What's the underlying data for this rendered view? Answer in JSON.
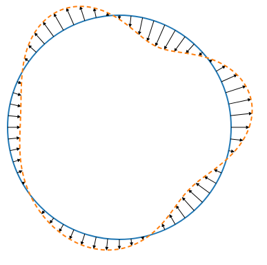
{
  "diagram": {
    "type": "radial-deformation-field",
    "circle_color": "#1f77b4",
    "deformed_curve_color": "#ff7f0e",
    "deformed_curve_style": "dashed",
    "arrow_color": "#000000",
    "arrow_count": 60,
    "deformation": {
      "mean_radius": 1.0,
      "harmonics": [
        {
          "n": 3,
          "amplitude": 0.15
        },
        {
          "n": 4,
          "amplitude": 0.06
        }
      ]
    }
  }
}
